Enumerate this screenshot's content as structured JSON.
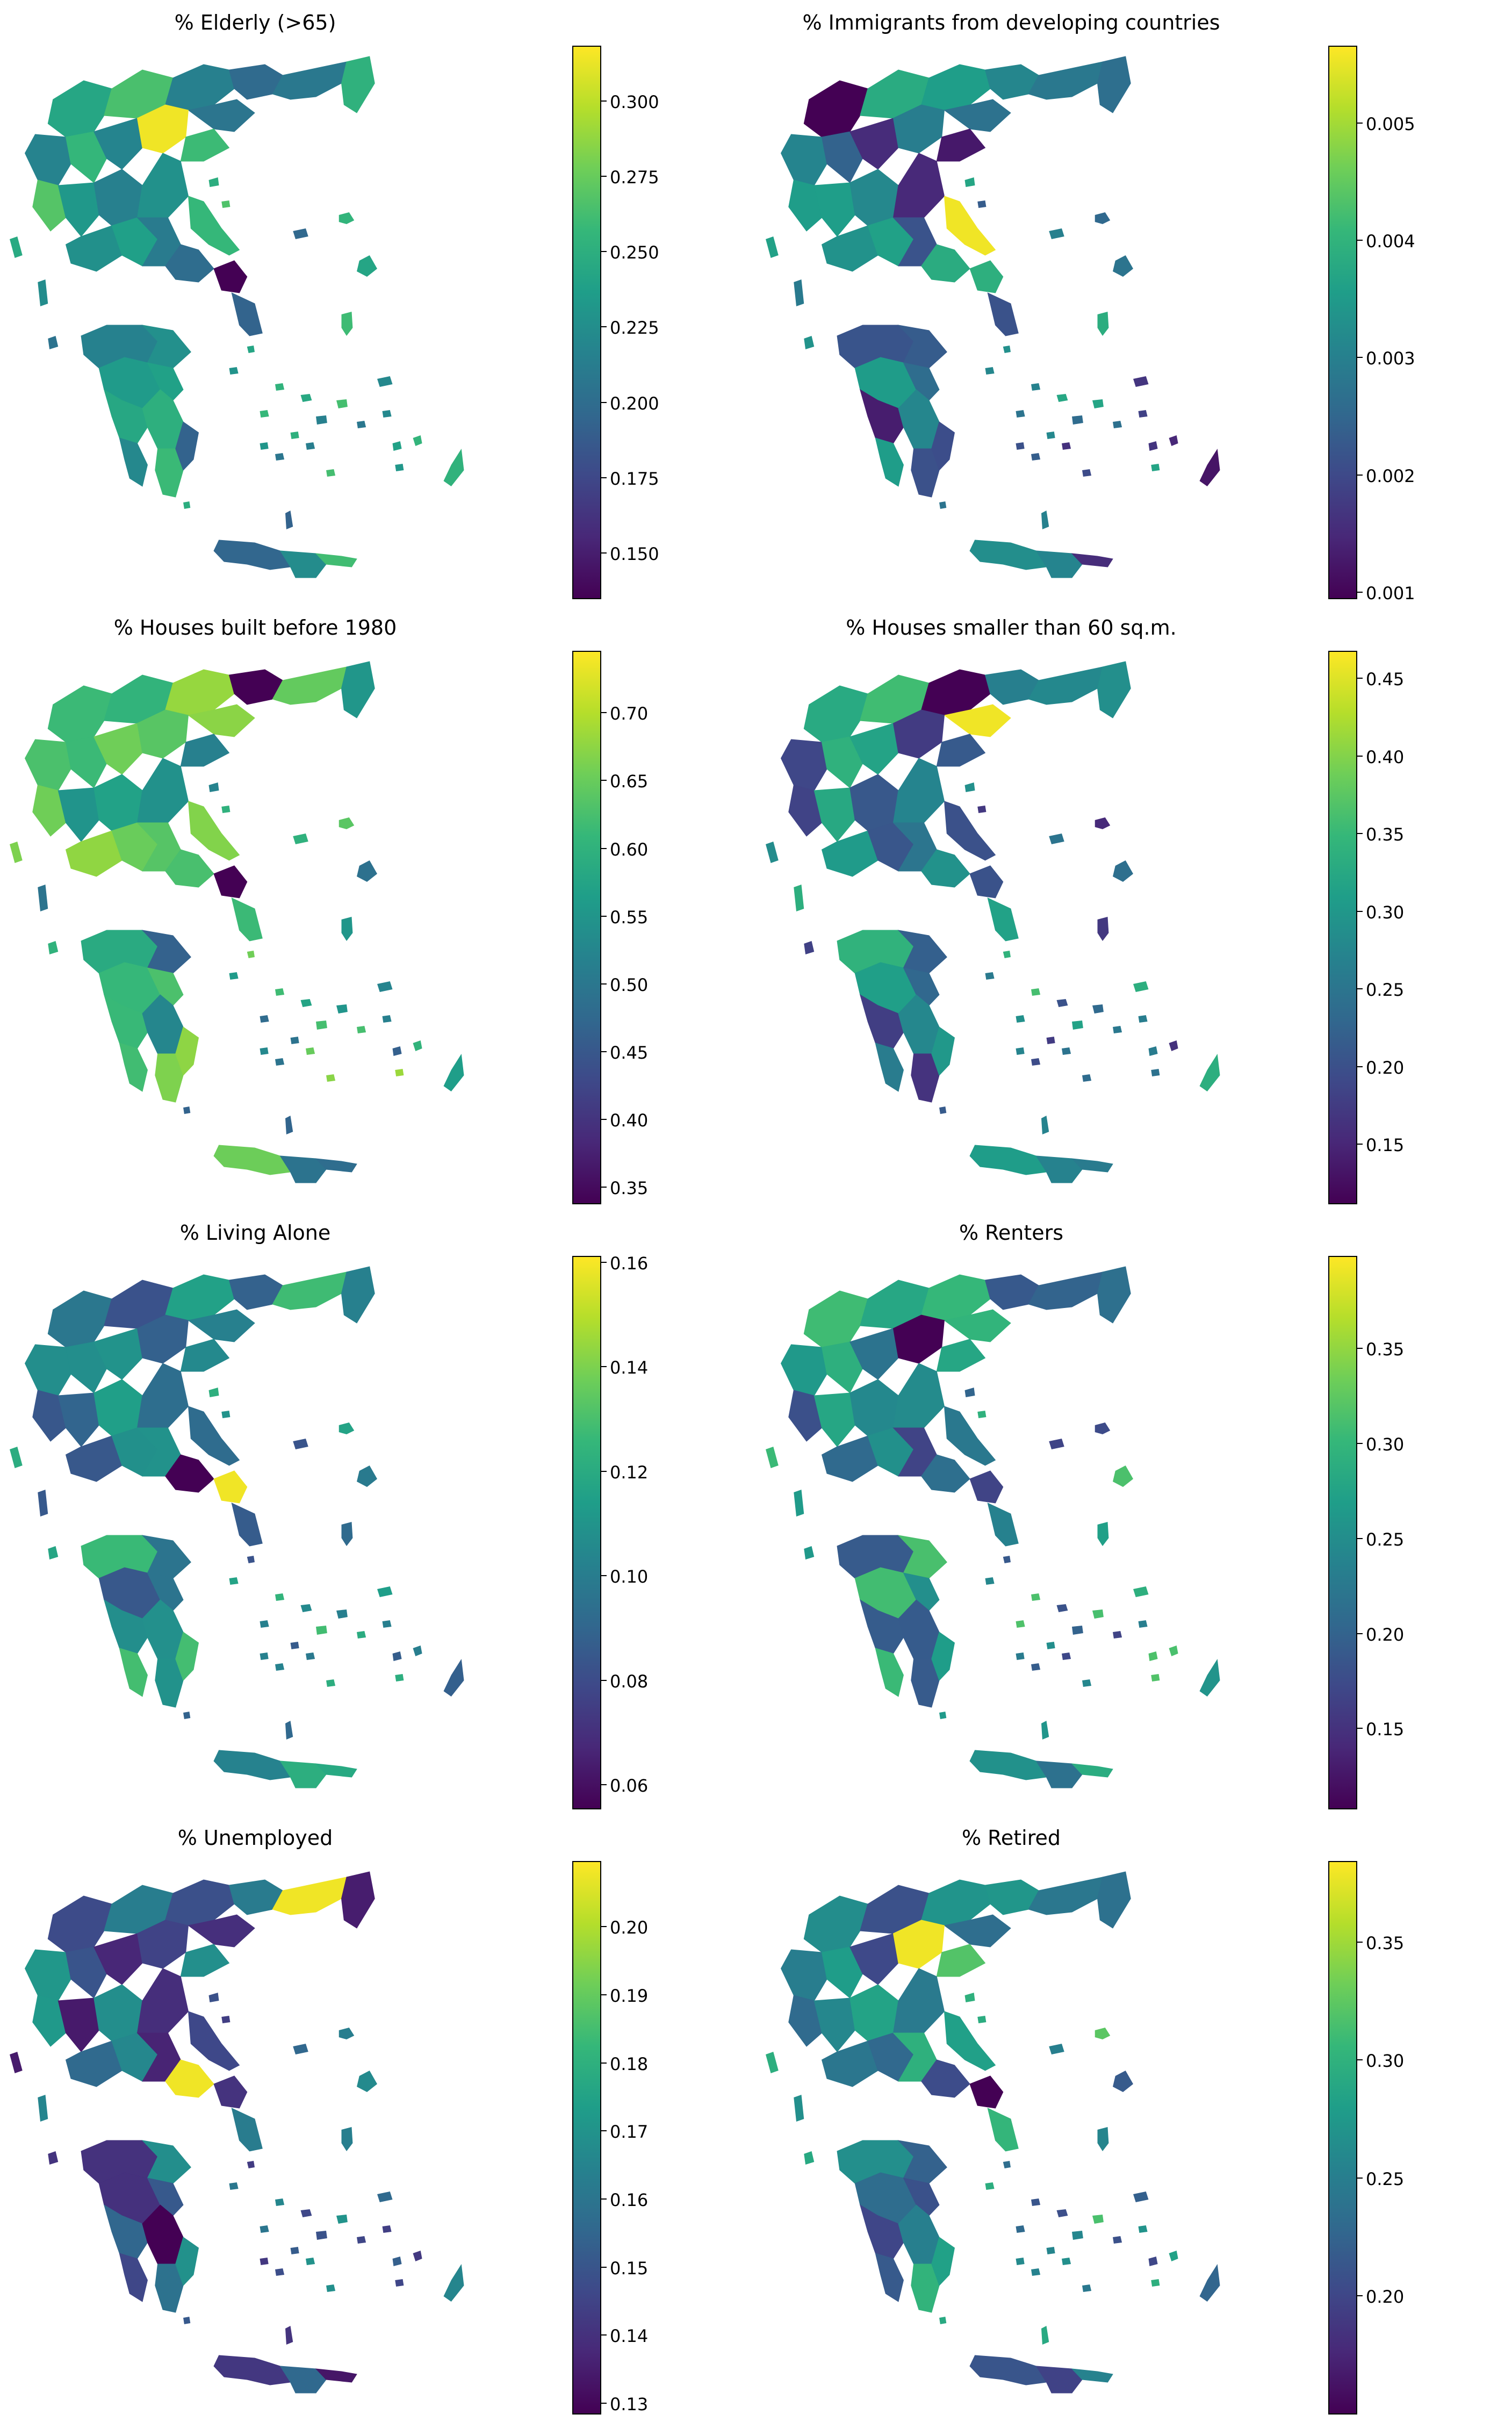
{
  "figure": {
    "colormap": "viridis",
    "colormap_stops": [
      "#440154",
      "#482878",
      "#3e4989",
      "#31688e",
      "#26828e",
      "#1f9e89",
      "#35b779",
      "#6ece58",
      "#b5de2b",
      "#fde725"
    ]
  },
  "panels": [
    {
      "title": "% Elderly (>65)",
      "colorbar": {
        "min": 0.135,
        "max": 0.318,
        "ticks": [
          "0.150",
          "0.175",
          "0.200",
          "0.225",
          "0.250",
          "0.275",
          "0.300"
        ]
      }
    },
    {
      "title": "% Immigrants from developing countries",
      "colorbar": {
        "min": 0.00095,
        "max": 0.00565,
        "ticks": [
          "0.001",
          "0.002",
          "0.003",
          "0.004",
          "0.005"
        ]
      }
    },
    {
      "title": "% Houses built before 1980",
      "colorbar": {
        "min": 0.338,
        "max": 0.745,
        "ticks": [
          "0.35",
          "0.40",
          "0.45",
          "0.50",
          "0.55",
          "0.60",
          "0.65",
          "0.70"
        ]
      }
    },
    {
      "title": "% Houses smaller than 60 sq.m.",
      "colorbar": {
        "min": 0.112,
        "max": 0.467,
        "ticks": [
          "0.15",
          "0.20",
          "0.25",
          "0.30",
          "0.35",
          "0.40",
          "0.45"
        ]
      }
    },
    {
      "title": "% Living Alone",
      "colorbar": {
        "min": 0.0555,
        "max": 0.161,
        "ticks": [
          "0.06",
          "0.08",
          "0.10",
          "0.12",
          "0.14",
          "0.16"
        ]
      }
    },
    {
      "title": "% Renters",
      "colorbar": {
        "min": 0.108,
        "max": 0.398,
        "ticks": [
          "0.15",
          "0.20",
          "0.25",
          "0.30",
          "0.35"
        ]
      }
    },
    {
      "title": "% Unemployed",
      "colorbar": {
        "min": 0.1285,
        "max": 0.2095,
        "ticks": [
          "0.13",
          "0.14",
          "0.15",
          "0.16",
          "0.17",
          "0.18",
          "0.19",
          "0.20"
        ]
      }
    },
    {
      "title": "% Retired",
      "colorbar": {
        "min": 0.15,
        "max": 0.384,
        "ticks": [
          "0.20",
          "0.25",
          "0.30",
          "0.35"
        ]
      }
    }
  ]
}
